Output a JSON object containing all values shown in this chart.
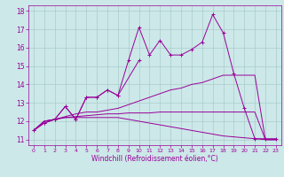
{
  "x": [
    0,
    1,
    2,
    3,
    4,
    5,
    6,
    7,
    8,
    9,
    10,
    11,
    12,
    13,
    14,
    15,
    16,
    17,
    18,
    19,
    20,
    21,
    22,
    23
  ],
  "line_zigzag": [
    11.5,
    11.9,
    12.1,
    12.8,
    12.1,
    13.3,
    13.3,
    13.7,
    13.4,
    15.3,
    17.1,
    15.6,
    16.4,
    15.6,
    15.6,
    15.9,
    16.3,
    17.8,
    16.8,
    14.6,
    12.7,
    11.05,
    11.05,
    11.05
  ],
  "line_upper": [
    11.5,
    12.0,
    12.1,
    12.25,
    12.4,
    12.5,
    12.5,
    12.6,
    12.7,
    12.9,
    13.1,
    13.3,
    13.5,
    13.7,
    13.8,
    14.0,
    14.1,
    14.3,
    14.5,
    14.5,
    14.5,
    14.5,
    11.0,
    11.0
  ],
  "line_mid": [
    11.5,
    12.0,
    12.1,
    12.2,
    12.25,
    12.3,
    12.35,
    12.4,
    12.4,
    12.45,
    12.45,
    12.45,
    12.5,
    12.5,
    12.5,
    12.5,
    12.5,
    12.5,
    12.5,
    12.5,
    12.5,
    12.5,
    11.0,
    11.0
  ],
  "line_lower": [
    11.5,
    12.0,
    12.1,
    12.2,
    12.2,
    12.2,
    12.2,
    12.2,
    12.2,
    12.1,
    12.0,
    11.9,
    11.8,
    11.7,
    11.6,
    11.5,
    11.4,
    11.3,
    11.2,
    11.15,
    11.1,
    11.05,
    11.0,
    11.0
  ],
  "line_partial": [
    11.5,
    11.9,
    12.1,
    12.8,
    12.1,
    13.3,
    13.3,
    13.7,
    13.4,
    null,
    15.3,
    null,
    null,
    null,
    null,
    null,
    null,
    null,
    null,
    null,
    null,
    null,
    null,
    null
  ],
  "color": "#990099",
  "bg_color": "#cce8e8",
  "grid_color": "#aacccc",
  "xlabel": "Windchill (Refroidissement éolien,°C)",
  "ylim": [
    10.7,
    18.3
  ],
  "xlim": [
    -0.5,
    23.5
  ],
  "yticks": [
    11,
    12,
    13,
    14,
    15,
    16,
    17,
    18
  ],
  "xticks": [
    0,
    1,
    2,
    3,
    4,
    5,
    6,
    7,
    8,
    9,
    10,
    11,
    12,
    13,
    14,
    15,
    16,
    17,
    18,
    19,
    20,
    21,
    22,
    23
  ]
}
